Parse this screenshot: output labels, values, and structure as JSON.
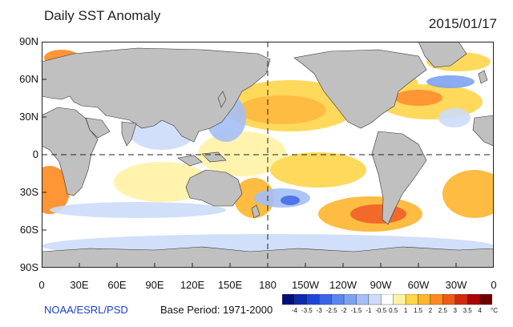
{
  "header": {
    "title": "Daily SST Anomaly",
    "date": "2015/01/17"
  },
  "map": {
    "y_axis_labels": [
      "90N",
      "60N",
      "30N",
      "0",
      "30S",
      "60S",
      "90S"
    ],
    "x_axis_labels": [
      "0",
      "30E",
      "60E",
      "90E",
      "120E",
      "150E",
      "180",
      "150W",
      "120W",
      "90W",
      "60W",
      "30W",
      "0"
    ],
    "land_color": "#c0c0c0",
    "ocean_color": "#ffffff"
  },
  "footer": {
    "source": "NOAA/ESRL/PSD",
    "base_period": "Base Period: 1971-2000"
  },
  "colorbar": {
    "labels": [
      "-4",
      "-3.5",
      "-3",
      "-2.5",
      "-2",
      "-1.5",
      "-1",
      "-0.5",
      "0.5",
      "1",
      "1.5",
      "2",
      "2.5",
      "3",
      "3.5",
      "4"
    ],
    "colors": [
      "#000f7a",
      "#0b2bb0",
      "#1f44d6",
      "#3a66e6",
      "#5a86ee",
      "#7ea2f2",
      "#a5bff6",
      "#cddcfa",
      "#ffffff",
      "#fff2a6",
      "#ffd54a",
      "#ffb52e",
      "#ff8a1e",
      "#f05a14",
      "#d32a0e",
      "#a80606",
      "#6e0000"
    ],
    "unit": "°C"
  }
}
